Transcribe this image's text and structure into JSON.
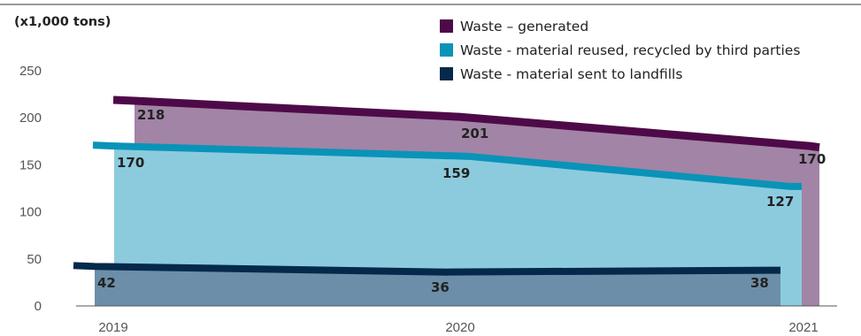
{
  "chart_data": {
    "type": "area",
    "unit_label": "(x1,000 tons)",
    "title": "",
    "xlabel": "",
    "ylabel": "",
    "x": [
      "2019",
      "2020",
      "2021"
    ],
    "ylim": [
      0,
      250
    ],
    "yticks": [
      0,
      50,
      100,
      150,
      200,
      250
    ],
    "grid": false,
    "legend_position": "top-right",
    "series": [
      {
        "name": "Waste – generated",
        "values": [
          218,
          201,
          170
        ],
        "line_color": "#4e0a48",
        "fill_color": "#a284a6"
      },
      {
        "name": "Waste - material reused, recycled by third parties",
        "values": [
          170,
          159,
          127
        ],
        "line_color": "#0a93b8",
        "fill_color": "#8ccbde"
      },
      {
        "name": "Waste - material sent to landfills",
        "values": [
          42,
          36,
          38
        ],
        "line_color": "#05294a",
        "fill_color": "#6c8ea8"
      }
    ]
  }
}
